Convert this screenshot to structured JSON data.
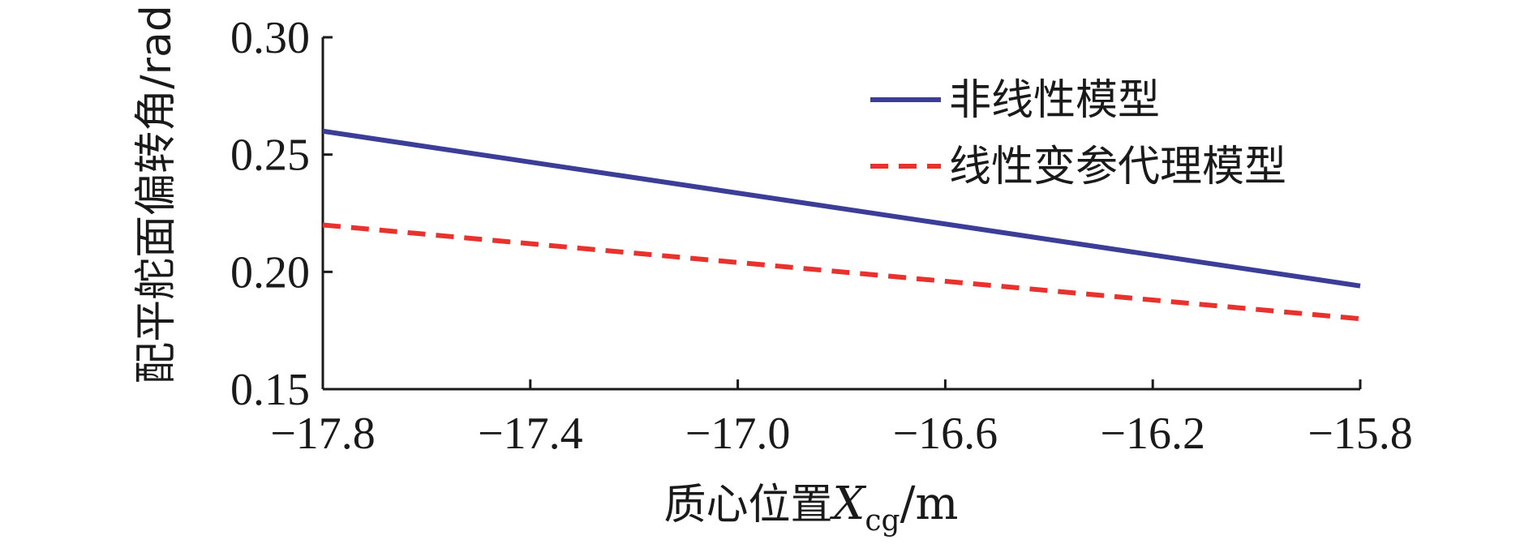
{
  "chart_data": {
    "type": "line",
    "title": "",
    "ylabel": "配平舵面偏转角/rad",
    "xlabel": {
      "prefix": "质心位置",
      "var": "X",
      "sub": "cg",
      "suffix": "/m"
    },
    "xlim": [
      -17.8,
      -15.8
    ],
    "ylim": [
      0.15,
      0.3
    ],
    "xticks": [
      -17.8,
      -17.4,
      -17.0,
      -16.6,
      -16.2,
      -15.8
    ],
    "xtick_labels": [
      "−17.8",
      "−17.4",
      "−17.0",
      "−16.6",
      "−16.2",
      "−15.8"
    ],
    "yticks": [
      0.15,
      0.2,
      0.25,
      0.3
    ],
    "ytick_labels": [
      "0.15",
      "0.20",
      "0.25",
      "0.30"
    ],
    "grid": false,
    "legend_position": "top-right",
    "series": [
      {
        "name": "非线性模型",
        "style": "solid",
        "color": "#3b3d96",
        "x": [
          -17.8,
          -15.8
        ],
        "y": [
          0.26,
          0.194
        ]
      },
      {
        "name": "线性变参代理模型",
        "style": "dashed",
        "color": "#e8322e",
        "x": [
          -17.8,
          -15.8
        ],
        "y": [
          0.22,
          0.18
        ]
      }
    ]
  }
}
